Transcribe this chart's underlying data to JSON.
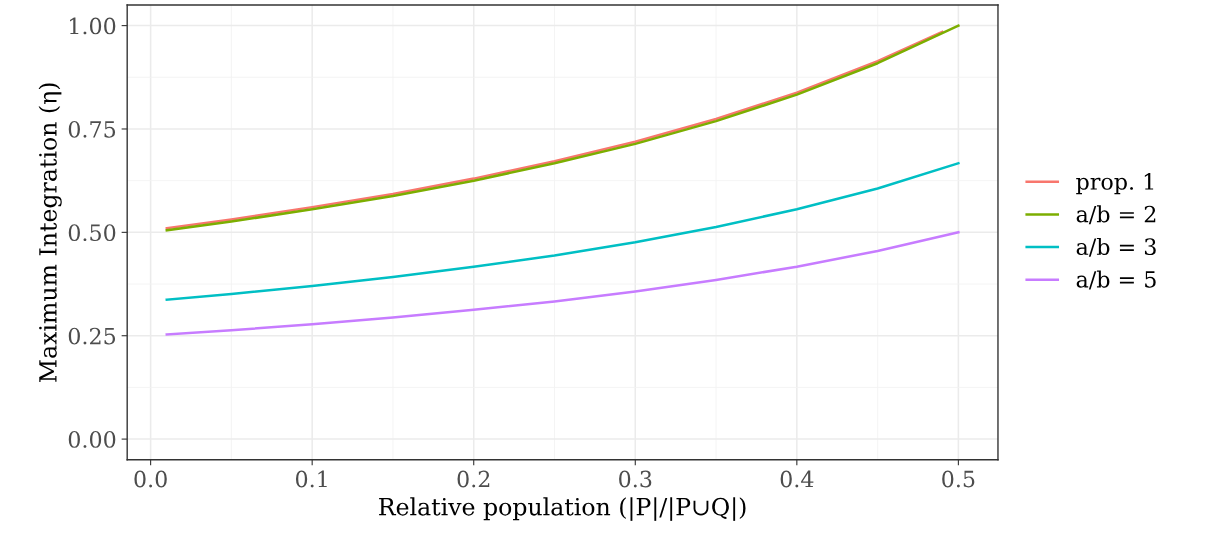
{
  "chart_data": {
    "type": "line",
    "xlabel": "Relative population (|P|/|P∪Q|)",
    "ylabel": "Maximum Integration (η)",
    "x": [
      0.01,
      0.05,
      0.1,
      0.15,
      0.2,
      0.25,
      0.3,
      0.35,
      0.4,
      0.45,
      0.5
    ],
    "series": [
      {
        "name": "prop. 1",
        "color": "#f8766d",
        "x": [
          0.01,
          0.05,
          0.1,
          0.15,
          0.2,
          0.25,
          0.3,
          0.35,
          0.4,
          0.45,
          0.49
        ],
        "values": [
          0.51,
          0.531,
          0.561,
          0.593,
          0.63,
          0.672,
          0.719,
          0.774,
          0.838,
          0.914,
          0.985
        ]
      },
      {
        "name": "a/b = 2",
        "color": "#7cae00",
        "values": [
          0.505,
          0.526,
          0.556,
          0.588,
          0.625,
          0.667,
          0.714,
          0.769,
          0.833,
          0.909,
          1.0
        ]
      },
      {
        "name": "a/b = 3",
        "color": "#00bfc4",
        "values": [
          0.337,
          0.351,
          0.37,
          0.392,
          0.417,
          0.444,
          0.476,
          0.513,
          0.556,
          0.606,
          0.667
        ]
      },
      {
        "name": "a/b = 5",
        "color": "#c77cff",
        "values": [
          0.253,
          0.263,
          0.278,
          0.294,
          0.313,
          0.333,
          0.357,
          0.385,
          0.417,
          0.455,
          0.5
        ]
      }
    ],
    "xlim": [
      -0.0145,
      0.5245
    ],
    "ylim": [
      -0.05,
      1.05
    ],
    "xticks": [
      {
        "value": 0.0,
        "label": "0.0"
      },
      0.1,
      0.2,
      0.3,
      0.4,
      0.5
    ],
    "yticks": [
      {
        "value": 0.0,
        "label": "0.00"
      },
      0.25,
      {
        "value": 0.5,
        "label": "0.50"
      },
      0.75,
      {
        "value": 1.0,
        "label": "1.00"
      }
    ],
    "grid": true,
    "legend": "right",
    "marker": "none",
    "line_style": "solid"
  }
}
